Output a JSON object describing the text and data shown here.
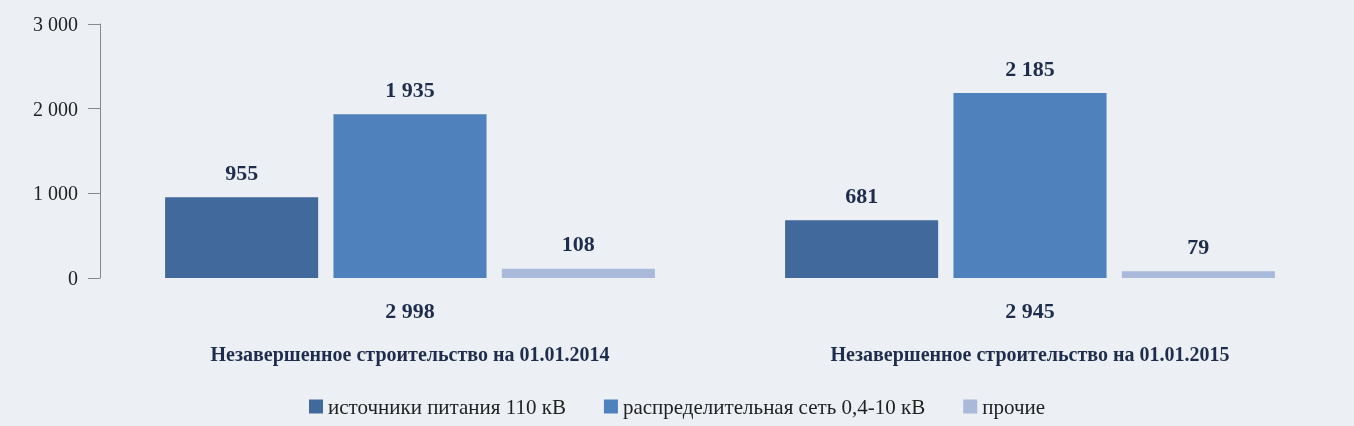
{
  "chart_data": {
    "type": "bar",
    "categories": [
      "Незавершенное строительство на 01.01.2014",
      "Незавершенное строительство на 01.01.2015"
    ],
    "series": [
      {
        "name": "источники питания 110 кВ",
        "color": "#41699b",
        "values": [
          955,
          681
        ],
        "value_labels": [
          "955",
          "681"
        ]
      },
      {
        "name": "распределительная сеть 0,4-10 кВ",
        "color": "#4f81bd",
        "values": [
          1935,
          2185
        ],
        "value_labels": [
          "1 935",
          "2 185"
        ]
      },
      {
        "name": "прочие",
        "color": "#a9b9d9",
        "values": [
          108,
          79
        ],
        "value_labels": [
          "108",
          "79"
        ]
      }
    ],
    "totals": [
      "2 998",
      "2 945"
    ],
    "ylim": [
      0,
      3000
    ],
    "yticks": [
      {
        "value": 0,
        "label": "0"
      },
      {
        "value": 1000,
        "label": "1 000"
      },
      {
        "value": 2000,
        "label": "2 000"
      },
      {
        "value": 3000,
        "label": "3 000"
      }
    ],
    "grid": false,
    "legend": "bottom"
  }
}
